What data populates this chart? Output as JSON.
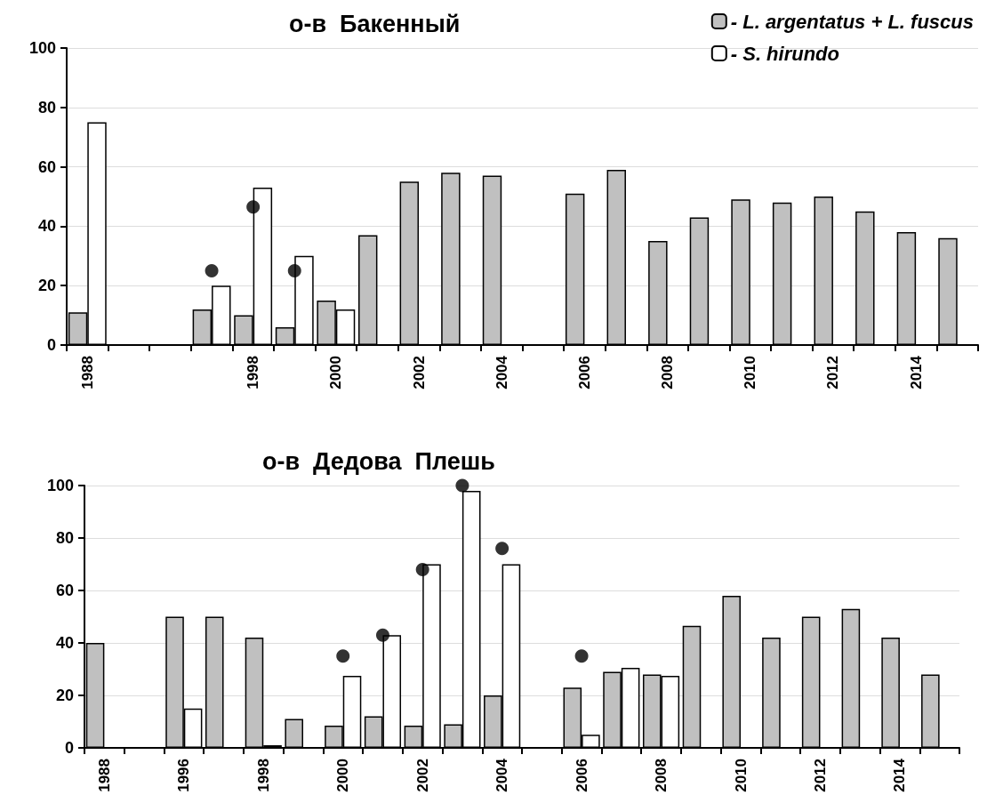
{
  "chart_data": [
    {
      "type": "bar",
      "title": "о-в  Бакенный",
      "categories": [
        "1988",
        null,
        null,
        null,
        "1998",
        null,
        "2000",
        null,
        "2002",
        null,
        "2004",
        null,
        "2006",
        null,
        "2008",
        null,
        "2010",
        null,
        "2012",
        null,
        "2014",
        null
      ],
      "series": [
        {
          "name": "- L. argentatus + L. fuscus",
          "color": "#c0c0c0",
          "values": [
            11,
            null,
            null,
            12,
            10,
            6,
            15,
            37,
            55,
            58,
            57,
            null,
            51,
            59,
            35,
            43,
            49,
            48,
            50,
            45,
            38,
            36
          ]
        },
        {
          "name": "- S. hirundo",
          "color": "#ffffff",
          "values": [
            75,
            null,
            null,
            20,
            53,
            30,
            12,
            null,
            null,
            null,
            null,
            null,
            null,
            null,
            null,
            null,
            null,
            null,
            null,
            null,
            null,
            null
          ]
        },
        {
          "type": "scatter",
          "color": "#000000",
          "values": [
            null,
            null,
            null,
            25,
            46.5,
            25,
            null,
            null,
            null,
            null,
            null,
            null,
            null,
            null,
            null,
            null,
            null,
            null,
            null,
            null,
            null,
            null
          ]
        }
      ],
      "ylim": [
        0,
        100
      ],
      "yticks": [
        0,
        20,
        40,
        60,
        80,
        100
      ],
      "grid": "y",
      "legend": "top right",
      "marker": "circle"
    },
    {
      "type": "bar",
      "title": "о-в  Дедова  Плешь",
      "categories": [
        "1988",
        null,
        "1996",
        null,
        "1998",
        null,
        "2000",
        null,
        "2002",
        null,
        "2004",
        null,
        "2006",
        null,
        "2008",
        null,
        "2010",
        null,
        "2012",
        null,
        "2014",
        null
      ],
      "series": [
        {
          "color": "#c0c0c0",
          "values": [
            40,
            null,
            50,
            50,
            42,
            11,
            8.5,
            12,
            8.5,
            9,
            20,
            null,
            23,
            29,
            28,
            46.5,
            58,
            42,
            50,
            53,
            42,
            28
          ]
        },
        {
          "color": "#ffffff",
          "values": [
            null,
            null,
            15,
            null,
            1,
            null,
            27.5,
            43,
            70,
            98,
            70,
            null,
            5,
            30.5,
            27.5,
            null,
            null,
            null,
            null,
            null,
            null,
            null
          ]
        },
        {
          "type": "scatter",
          "color": "#000000",
          "values": [
            null,
            null,
            null,
            null,
            null,
            null,
            35,
            43,
            68,
            100,
            76,
            null,
            35,
            null,
            null,
            null,
            null,
            null,
            null,
            null,
            null,
            null
          ]
        }
      ],
      "ylim": [
        0,
        100
      ],
      "yticks": [
        0,
        20,
        40,
        60,
        80,
        100
      ],
      "grid": "y",
      "legend": false,
      "marker": "circle"
    }
  ]
}
